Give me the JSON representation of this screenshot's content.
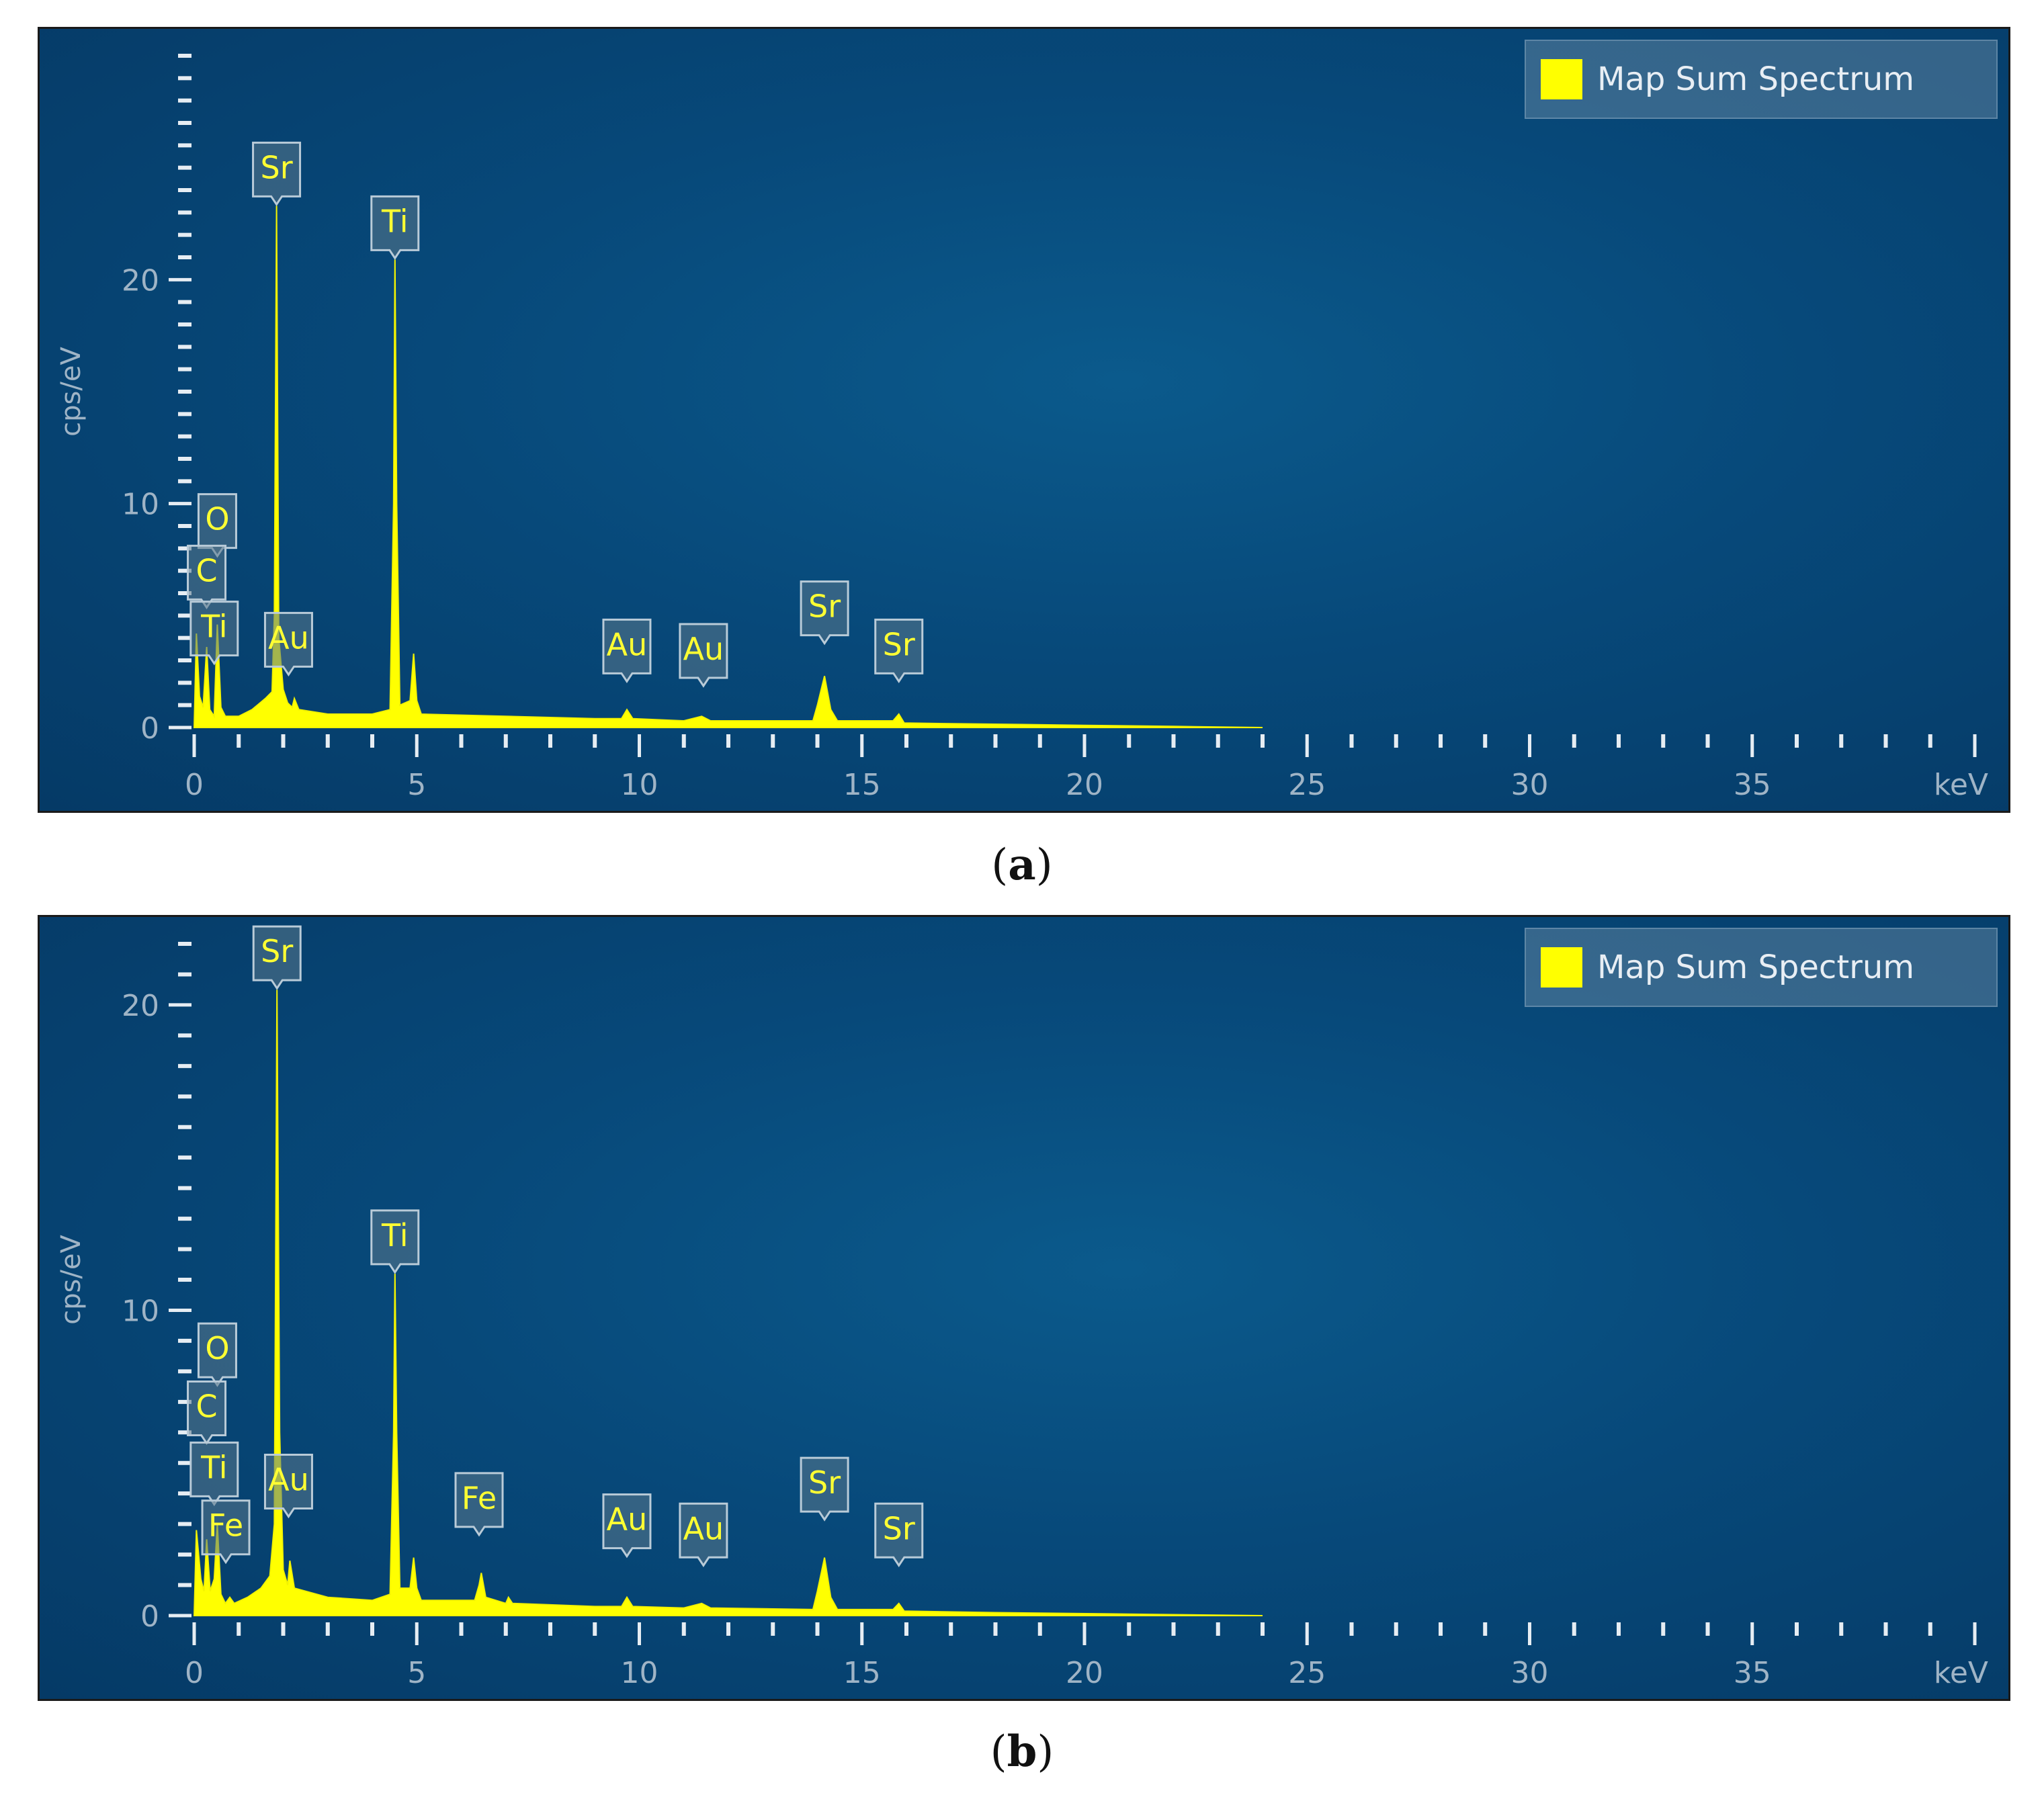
{
  "chart_data": [
    {
      "type": "line",
      "panel_label": "a",
      "ylabel": "cps/eV",
      "xlabel": "keV",
      "xlim": [
        0,
        40
      ],
      "ylim": [
        0,
        30
      ],
      "x_ticks": [
        0,
        5,
        10,
        15,
        20,
        25,
        30,
        35
      ],
      "y_ticks": [
        0,
        10,
        20
      ],
      "legend": {
        "label": "Map Sum Spectrum",
        "color": "#ffff00",
        "position": "top-right"
      },
      "series": [
        {
          "name": "Map Sum Spectrum",
          "points": [
            [
              0.0,
              0
            ],
            [
              0.05,
              4.2
            ],
            [
              0.12,
              1.4
            ],
            [
              0.2,
              0.9
            ],
            [
              0.28,
              3.6
            ],
            [
              0.35,
              0.8
            ],
            [
              0.45,
              0.5
            ],
            [
              0.52,
              4.6
            ],
            [
              0.6,
              0.9
            ],
            [
              0.7,
              0.5
            ],
            [
              1.0,
              0.5
            ],
            [
              1.3,
              0.8
            ],
            [
              1.6,
              1.3
            ],
            [
              1.75,
              1.6
            ],
            [
              1.8,
              5.0
            ],
            [
              1.85,
              23.3
            ],
            [
              1.9,
              4.0
            ],
            [
              2.0,
              1.7
            ],
            [
              2.1,
              1.1
            ],
            [
              2.2,
              0.9
            ],
            [
              2.25,
              1.3
            ],
            [
              2.35,
              0.8
            ],
            [
              3.0,
              0.6
            ],
            [
              4.0,
              0.6
            ],
            [
              4.4,
              0.8
            ],
            [
              4.48,
              10
            ],
            [
              4.51,
              20.9
            ],
            [
              4.55,
              10
            ],
            [
              4.62,
              1.0
            ],
            [
              4.85,
              1.2
            ],
            [
              4.93,
              3.3
            ],
            [
              5.0,
              1.2
            ],
            [
              5.1,
              0.6
            ],
            [
              7.0,
              0.5
            ],
            [
              9.0,
              0.4
            ],
            [
              9.6,
              0.4
            ],
            [
              9.72,
              0.8
            ],
            [
              9.85,
              0.4
            ],
            [
              11.0,
              0.3
            ],
            [
              11.4,
              0.5
            ],
            [
              11.6,
              0.3
            ],
            [
              13.9,
              0.3
            ],
            [
              14.0,
              1.0
            ],
            [
              14.16,
              2.3
            ],
            [
              14.3,
              0.8
            ],
            [
              14.45,
              0.3
            ],
            [
              15.7,
              0.3
            ],
            [
              15.83,
              0.6
            ],
            [
              15.95,
              0.2
            ],
            [
              18.0,
              0.15
            ],
            [
              20.0,
              0.1
            ],
            [
              22.0,
              0.05
            ],
            [
              24.0,
              0
            ]
          ]
        }
      ],
      "peak_labels": [
        {
          "text": "Sr",
          "x": 1.85,
          "y": 23.3
        },
        {
          "text": "Ti",
          "x": 4.51,
          "y": 20.9
        },
        {
          "text": "O",
          "x": 0.52,
          "y": 7.6
        },
        {
          "text": "C",
          "x": 0.28,
          "y": 5.3
        },
        {
          "text": "Ti",
          "x": 0.45,
          "y": 2.8
        },
        {
          "text": "Au",
          "x": 2.12,
          "y": 2.3
        },
        {
          "text": "Au",
          "x": 9.72,
          "y": 2.0
        },
        {
          "text": "Au",
          "x": 11.44,
          "y": 1.8
        },
        {
          "text": "Sr",
          "x": 14.16,
          "y": 3.7
        },
        {
          "text": "Sr",
          "x": 15.83,
          "y": 2.0
        }
      ]
    },
    {
      "type": "line",
      "panel_label": "b",
      "ylabel": "cps/eV",
      "xlabel": "keV",
      "xlim": [
        0,
        40
      ],
      "ylim": [
        0,
        22
      ],
      "x_ticks": [
        0,
        5,
        10,
        15,
        20,
        25,
        30,
        35
      ],
      "y_ticks": [
        0,
        10,
        20
      ],
      "legend": {
        "label": "Map Sum Spectrum",
        "color": "#ffff00",
        "position": "top-right"
      },
      "series": [
        {
          "name": "Map Sum Spectrum",
          "points": [
            [
              0.0,
              0
            ],
            [
              0.05,
              2.8
            ],
            [
              0.15,
              1.2
            ],
            [
              0.22,
              0.8
            ],
            [
              0.28,
              2.5
            ],
            [
              0.36,
              0.8
            ],
            [
              0.45,
              1.2
            ],
            [
              0.52,
              3.0
            ],
            [
              0.6,
              0.7
            ],
            [
              0.7,
              0.4
            ],
            [
              0.8,
              0.6
            ],
            [
              0.9,
              0.4
            ],
            [
              1.2,
              0.6
            ],
            [
              1.5,
              0.9
            ],
            [
              1.7,
              1.3
            ],
            [
              1.8,
              3.0
            ],
            [
              1.86,
              20.5
            ],
            [
              1.92,
              6.0
            ],
            [
              2.0,
              1.5
            ],
            [
              2.1,
              1.0
            ],
            [
              2.15,
              1.8
            ],
            [
              2.25,
              0.9
            ],
            [
              3.0,
              0.6
            ],
            [
              4.0,
              0.5
            ],
            [
              4.4,
              0.7
            ],
            [
              4.48,
              6.0
            ],
            [
              4.51,
              11.2
            ],
            [
              4.55,
              6.0
            ],
            [
              4.62,
              0.9
            ],
            [
              4.85,
              0.9
            ],
            [
              4.93,
              1.9
            ],
            [
              5.0,
              0.9
            ],
            [
              5.1,
              0.5
            ],
            [
              6.3,
              0.5
            ],
            [
              6.4,
              1.0
            ],
            [
              6.45,
              1.4
            ],
            [
              6.55,
              0.6
            ],
            [
              7.0,
              0.4
            ],
            [
              7.06,
              0.6
            ],
            [
              7.15,
              0.4
            ],
            [
              9.0,
              0.3
            ],
            [
              9.6,
              0.3
            ],
            [
              9.72,
              0.6
            ],
            [
              9.85,
              0.3
            ],
            [
              11.0,
              0.25
            ],
            [
              11.4,
              0.4
            ],
            [
              11.6,
              0.25
            ],
            [
              13.9,
              0.2
            ],
            [
              14.0,
              0.8
            ],
            [
              14.16,
              1.9
            ],
            [
              14.3,
              0.6
            ],
            [
              14.45,
              0.2
            ],
            [
              15.7,
              0.2
            ],
            [
              15.83,
              0.4
            ],
            [
              15.95,
              0.15
            ],
            [
              18.0,
              0.1
            ],
            [
              21.0,
              0.05
            ],
            [
              24.0,
              0
            ]
          ]
        }
      ],
      "peak_labels": [
        {
          "text": "Sr",
          "x": 1.86,
          "y": 20.5
        },
        {
          "text": "Ti",
          "x": 4.51,
          "y": 11.2
        },
        {
          "text": "O",
          "x": 0.52,
          "y": 7.5
        },
        {
          "text": "C",
          "x": 0.28,
          "y": 5.6
        },
        {
          "text": "Ti",
          "x": 0.45,
          "y": 3.6
        },
        {
          "text": "Fe",
          "x": 0.71,
          "y": 1.7
        },
        {
          "text": "Au",
          "x": 2.12,
          "y": 3.2
        },
        {
          "text": "Fe",
          "x": 6.4,
          "y": 2.6
        },
        {
          "text": "Au",
          "x": 9.72,
          "y": 1.9
        },
        {
          "text": "Au",
          "x": 11.44,
          "y": 1.6
        },
        {
          "text": "Sr",
          "x": 14.16,
          "y": 3.1
        },
        {
          "text": "Sr",
          "x": 15.83,
          "y": 1.6
        }
      ]
    }
  ],
  "captions": {
    "a": "a",
    "b": "b"
  }
}
